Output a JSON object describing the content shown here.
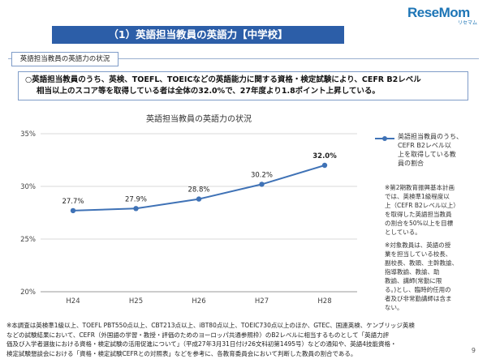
{
  "logo": {
    "brand": "ReseMom",
    "sub": "リセマム"
  },
  "header": {
    "title": "（1）英語担当教員の英語力【中学校】"
  },
  "section": {
    "label": "英語担当教員の英語力の状況"
  },
  "summary": {
    "line1": "○英語担当教員のうち、英検、TOEFL、TOEICなどの英語能力に関する資格・検定試験により、CEFR B2レベル",
    "line2_a": "相当以上のスコア等を取得している者は全体の",
    "line2_b": "32.0%",
    "line2_c": "で、27年度より",
    "line2_d": "1.8ポイント上昇",
    "line2_e": "している。"
  },
  "chart_data": {
    "type": "line",
    "title": "英語担当教員の英語力の状況",
    "categories": [
      "H24",
      "H25",
      "H26",
      "H27",
      "H28"
    ],
    "series": [
      {
        "name": "英語担当教員のうち、CEFR B2レベル以上を取得している教員の割合",
        "values": [
          27.7,
          27.9,
          28.8,
          30.2,
          32.0
        ],
        "labels": [
          "27.7%",
          "27.9%",
          "28.8%",
          "30.2%",
          "32.0%"
        ]
      }
    ],
    "ylim": [
      20,
      35
    ],
    "yticks": [
      20,
      25,
      30,
      35
    ],
    "ytick_labels": [
      "20%",
      "25%",
      "30%",
      "35%"
    ],
    "grid": true,
    "legend_position": "right",
    "color": "#3f72b6"
  },
  "legend": {
    "lines": [
      "英語担当教員のうち、",
      "CEFR B2レベル以",
      "上を取得している教",
      "員の割合"
    ]
  },
  "notes": {
    "note1": [
      "※第2期教育振興基本計画",
      "では、英検準1級程度以",
      "上（CEFR B2レベル以上）",
      "を取得した英語担当教員",
      "の割合を50%以上を目標",
      "としている。"
    ],
    "note2": [
      "※対象教員は、英語の授",
      "業を担当している校長、",
      "副校長、教頭、主幹教諭、",
      "指導教諭、教諭、助",
      "教諭、講師(常勤に限",
      "る。)とし、臨時的任用の",
      "者及び非常勤講師は含ま",
      "ない。"
    ]
  },
  "footnote": {
    "lines": [
      "※本調査は英検準1級以上、TOEFL PBT550点以上、CBT213点以上、iBT80点以上、TOEIC730点以上のほか、GTEC、国連英検、ケンブリッジ英検",
      "などの試験結果において、CEFR（外国語の学習・教授・評価のためのヨーロッパ共通参照枠）のB2レベルに相当するものとして「英語力評",
      "価及び入学者選抜における資格・検定試験の活用促進について」（平成27年3月31日付け26文科初第1495号）などの通知や、英語4技能資格・",
      "検定試験懇談会における「資格・検定試験CEFRとの対照表」などを参考に、各教育委員会において判断した教員の割合である。"
    ]
  },
  "page": {
    "number": "9"
  }
}
